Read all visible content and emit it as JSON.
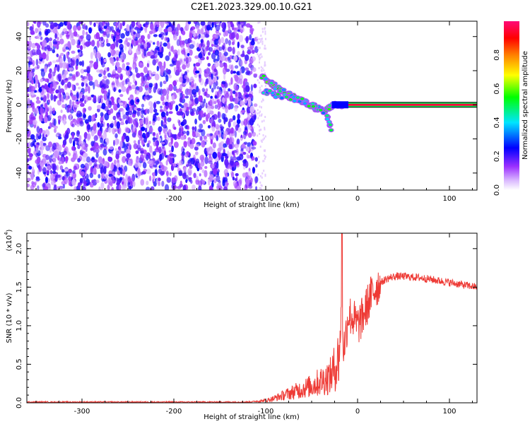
{
  "figure": {
    "title": "C2E1.2023.329.00.10.G21"
  },
  "chart_data": [
    {
      "type": "heatmap",
      "xlabel": "Height of straight line (km)",
      "ylabel": "Frequency (Hz)",
      "xlim": [
        -360,
        130
      ],
      "ylim": [
        -50,
        49
      ],
      "xticks": [
        -300,
        -200,
        -100,
        0,
        100
      ],
      "yticks": [
        -40,
        -20,
        0,
        20,
        40
      ],
      "colorbar": {
        "label": "Normalized spectral amplitude",
        "range": [
          0,
          1
        ],
        "ticks": [
          "0.0",
          "0.2",
          "0.4",
          "0.6",
          "0.8"
        ],
        "colormap": [
          "#ffffff",
          "#9b30ff",
          "#0000ff",
          "#00e5ff",
          "#00ff00",
          "#ffff00",
          "#ff8000",
          "#ff0000",
          "#ff0a78"
        ]
      },
      "noise_region": {
        "x": [
          -360,
          -110
        ],
        "y": [
          -50,
          49
        ],
        "amplitude": [
          0.05,
          0.25
        ]
      },
      "signal_track": [
        {
          "x": -105,
          "y": 17
        },
        {
          "x": -95,
          "y": 13
        },
        {
          "x": -85,
          "y": 9
        },
        {
          "x": -75,
          "y": 6
        },
        {
          "x": -65,
          "y": 3
        },
        {
          "x": -55,
          "y": 1
        },
        {
          "x": -45,
          "y": -2
        },
        {
          "x": -35,
          "y": -3
        },
        {
          "x": -25,
          "y": 0
        },
        {
          "x": -15,
          "y": 0
        },
        {
          "x": 0,
          "y": 0
        },
        {
          "x": 130,
          "y": 0
        }
      ],
      "secondary_track": [
        {
          "x": -105,
          "y": 8
        },
        {
          "x": -90,
          "y": 6
        },
        {
          "x": -70,
          "y": 4
        },
        {
          "x": -50,
          "y": 0
        },
        {
          "x": -35,
          "y": -4
        },
        {
          "x": -28,
          "y": -15
        }
      ],
      "carrier_line": {
        "x": [
          -10,
          130
        ],
        "y": 0,
        "amplitude": 0.95
      }
    },
    {
      "type": "line",
      "xlabel": "Height of straight line (km)",
      "ylabel": "SNR (10 * v/v)",
      "yscale_label": "(x10",
      "yscale_exponent": "4",
      "yscale_close": ")",
      "xlim": [
        -360,
        130
      ],
      "ylim": [
        0,
        2.2
      ],
      "xticks": [
        -300,
        -200,
        -100,
        0,
        100
      ],
      "yticks": [
        "0.0",
        "0.5",
        "1.0",
        "1.5",
        "2.0"
      ],
      "color": "#ee3a35",
      "series": [
        {
          "x": [
            -360,
            -300,
            -200,
            -120,
            -100,
            -90,
            -80,
            -70,
            -60,
            -50,
            -40,
            -30,
            -25,
            -20,
            -18,
            -15,
            -12,
            -10,
            -5,
            0,
            5,
            10,
            15,
            20,
            30,
            40,
            50,
            60,
            70,
            80,
            90,
            100,
            110,
            120,
            130
          ],
          "values": [
            0.01,
            0.01,
            0.01,
            0.01,
            0.03,
            0.06,
            0.1,
            0.14,
            0.18,
            0.22,
            0.28,
            0.34,
            0.45,
            0.6,
            1.1,
            0.7,
            0.95,
            1.15,
            1.1,
            1.0,
            1.1,
            1.25,
            1.4,
            1.5,
            1.6,
            1.64,
            1.64,
            1.63,
            1.62,
            1.6,
            1.58,
            1.56,
            1.54,
            1.52,
            1.5
          ]
        }
      ],
      "peak": {
        "x": -17,
        "y": 2.2
      }
    }
  ]
}
